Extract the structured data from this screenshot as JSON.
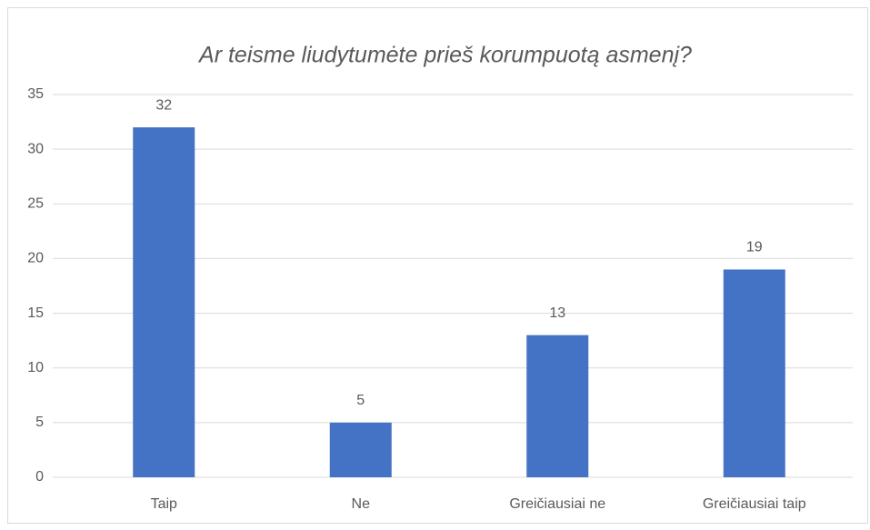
{
  "chart_data": {
    "type": "bar",
    "title": "Ar teisme liudytumėte prieš korumpuotą asmenį?",
    "categories": [
      "Taip",
      "Ne",
      "Greičiausiai ne",
      "Greičiausiai taip"
    ],
    "values": [
      32,
      5,
      13,
      19
    ],
    "color": "#4472c4",
    "ylim": [
      0,
      35
    ],
    "yticks": [
      0,
      5,
      10,
      15,
      20,
      25,
      30,
      35
    ],
    "grid": true
  }
}
